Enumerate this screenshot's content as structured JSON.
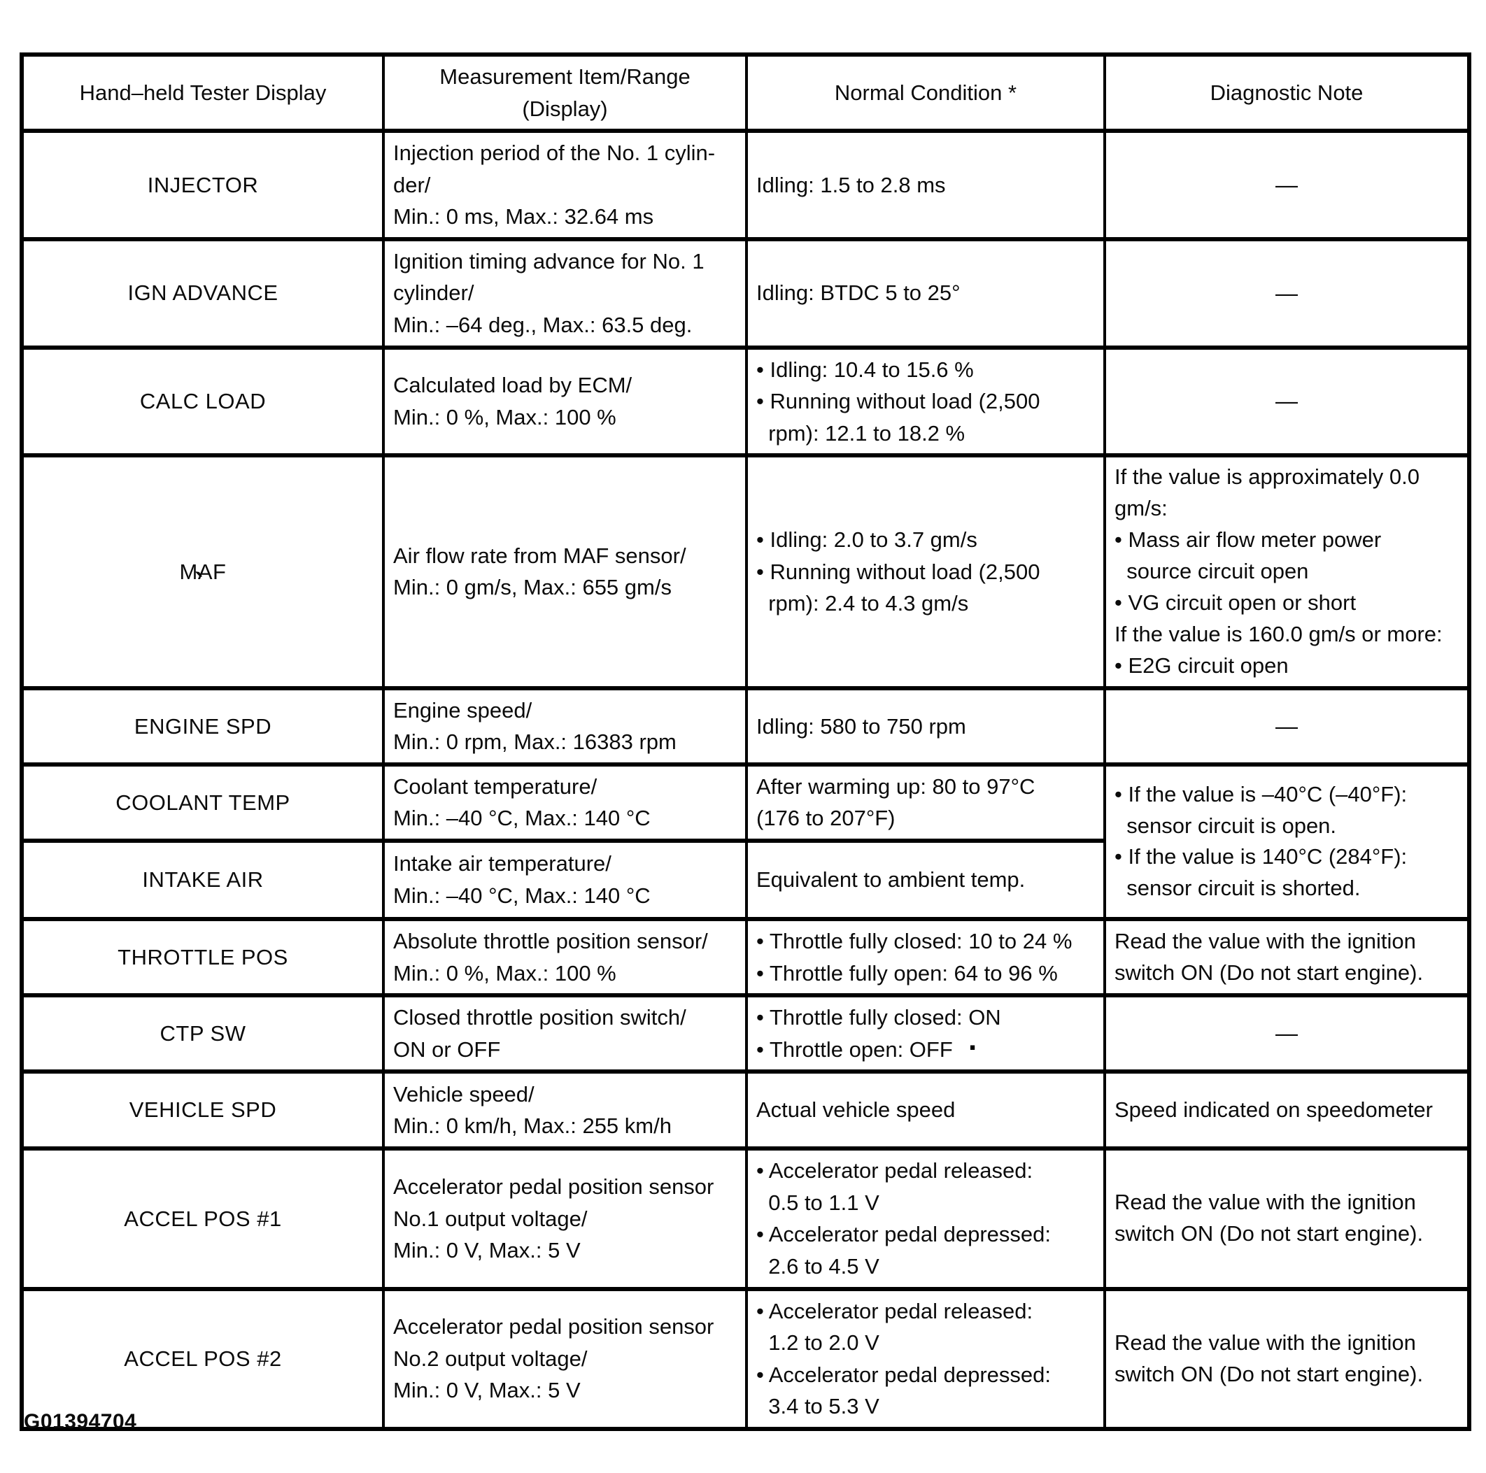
{
  "document": {
    "figure_id": "G01394704"
  },
  "table": {
    "headers": {
      "display": "Hand–held Tester Display",
      "measurement": "Measurement Item/Range\n(Display)",
      "normal": "Normal Condition *",
      "note": "Diagnostic Note"
    },
    "rows": [
      {
        "display": "INJECTOR",
        "measurement": "Injection period of the No. 1 cylin-\nder/\nMin.: 0 ms, Max.: 32.64 ms",
        "normal": "Idling: 1.5 to 2.8 ms",
        "note": "—"
      },
      {
        "display": "IGN ADVANCE",
        "measurement": "Ignition timing advance for No. 1\ncylinder/\nMin.: –64 deg., Max.: 63.5 deg.",
        "normal": "Idling: BTDC 5 to 25°",
        "note": "—"
      },
      {
        "display": "CALC LOAD",
        "measurement": "Calculated load by ECM/\nMin.: 0 %, Max.: 100 %",
        "normal": "• Idling: 10.4 to 15.6 %\n• Running without load (2,500\n  rpm): 12.1 to 18.2 %",
        "note": "—"
      },
      {
        "display": "MAF",
        "measurement": "Air flow rate from MAF sensor/\nMin.: 0 gm/s, Max.: 655 gm/s",
        "normal": "• Idling: 2.0 to 3.7 gm/s\n• Running without load (2,500\n  rpm): 2.4 to 4.3 gm/s",
        "note": "If the value is approximately 0.0\ngm/s:\n• Mass air flow meter power\n  source circuit open\n• VG circuit open or short\nIf the value is 160.0 gm/s or more:\n• E2G circuit open"
      },
      {
        "display": "ENGINE SPD",
        "measurement": "Engine speed/\nMin.: 0 rpm, Max.: 16383 rpm",
        "normal": "Idling: 580 to 750 rpm",
        "note": "—"
      },
      {
        "display": "COOLANT TEMP",
        "measurement": "Coolant temperature/\nMin.: –40 °C, Max.: 140 °C",
        "normal": "After warming up: 80 to 97°C\n(176 to 207°F)",
        "note": "• If the value is –40°C (–40°F):\n  sensor circuit is open.\n• If the value is 140°C (284°F):\n  sensor circuit is shorted."
      },
      {
        "display": "INTAKE AIR",
        "measurement": "Intake air temperature/\nMin.: –40 °C, Max.: 140 °C",
        "normal": "Equivalent to ambient temp."
      },
      {
        "display": "THROTTLE POS",
        "measurement": "Absolute throttle position sensor/\nMin.: 0 %, Max.: 100 %",
        "normal": "• Throttle fully closed: 10 to 24 %\n• Throttle fully open: 64 to 96 %",
        "note": "Read the value with the ignition\nswitch ON (Do not start engine)."
      },
      {
        "display": "CTP SW",
        "measurement": "Closed throttle position switch/\nON or OFF",
        "normal": "• Throttle fully closed: ON\n• Throttle open: OFF",
        "note": "—"
      },
      {
        "display": "VEHICLE SPD",
        "measurement": "Vehicle speed/\nMin.: 0 km/h, Max.: 255 km/h",
        "normal": "Actual vehicle speed",
        "note": "Speed indicated on speedometer"
      },
      {
        "display": "ACCEL POS #1",
        "measurement": "Accelerator pedal position sensor\nNo.1 output voltage/\nMin.: 0 V, Max.: 5 V",
        "normal": "• Accelerator pedal released:\n  0.5 to 1.1 V\n• Accelerator pedal depressed:\n  2.6 to 4.5 V",
        "note": "Read the value with the ignition\nswitch ON (Do not start engine)."
      },
      {
        "display": "ACCEL POS #2",
        "measurement": "Accelerator pedal position sensor\nNo.2 output voltage/\nMin.: 0 V, Max.: 5 V",
        "normal": "• Accelerator pedal released:\n  1.2 to 2.0 V\n• Accelerator pedal depressed:\n  3.4 to 5.3 V",
        "note": "Read the value with the ignition\nswitch ON (Do not start engine)."
      }
    ]
  },
  "artifacts": {
    "maf_tick": "`",
    "stray_dot": "."
  }
}
